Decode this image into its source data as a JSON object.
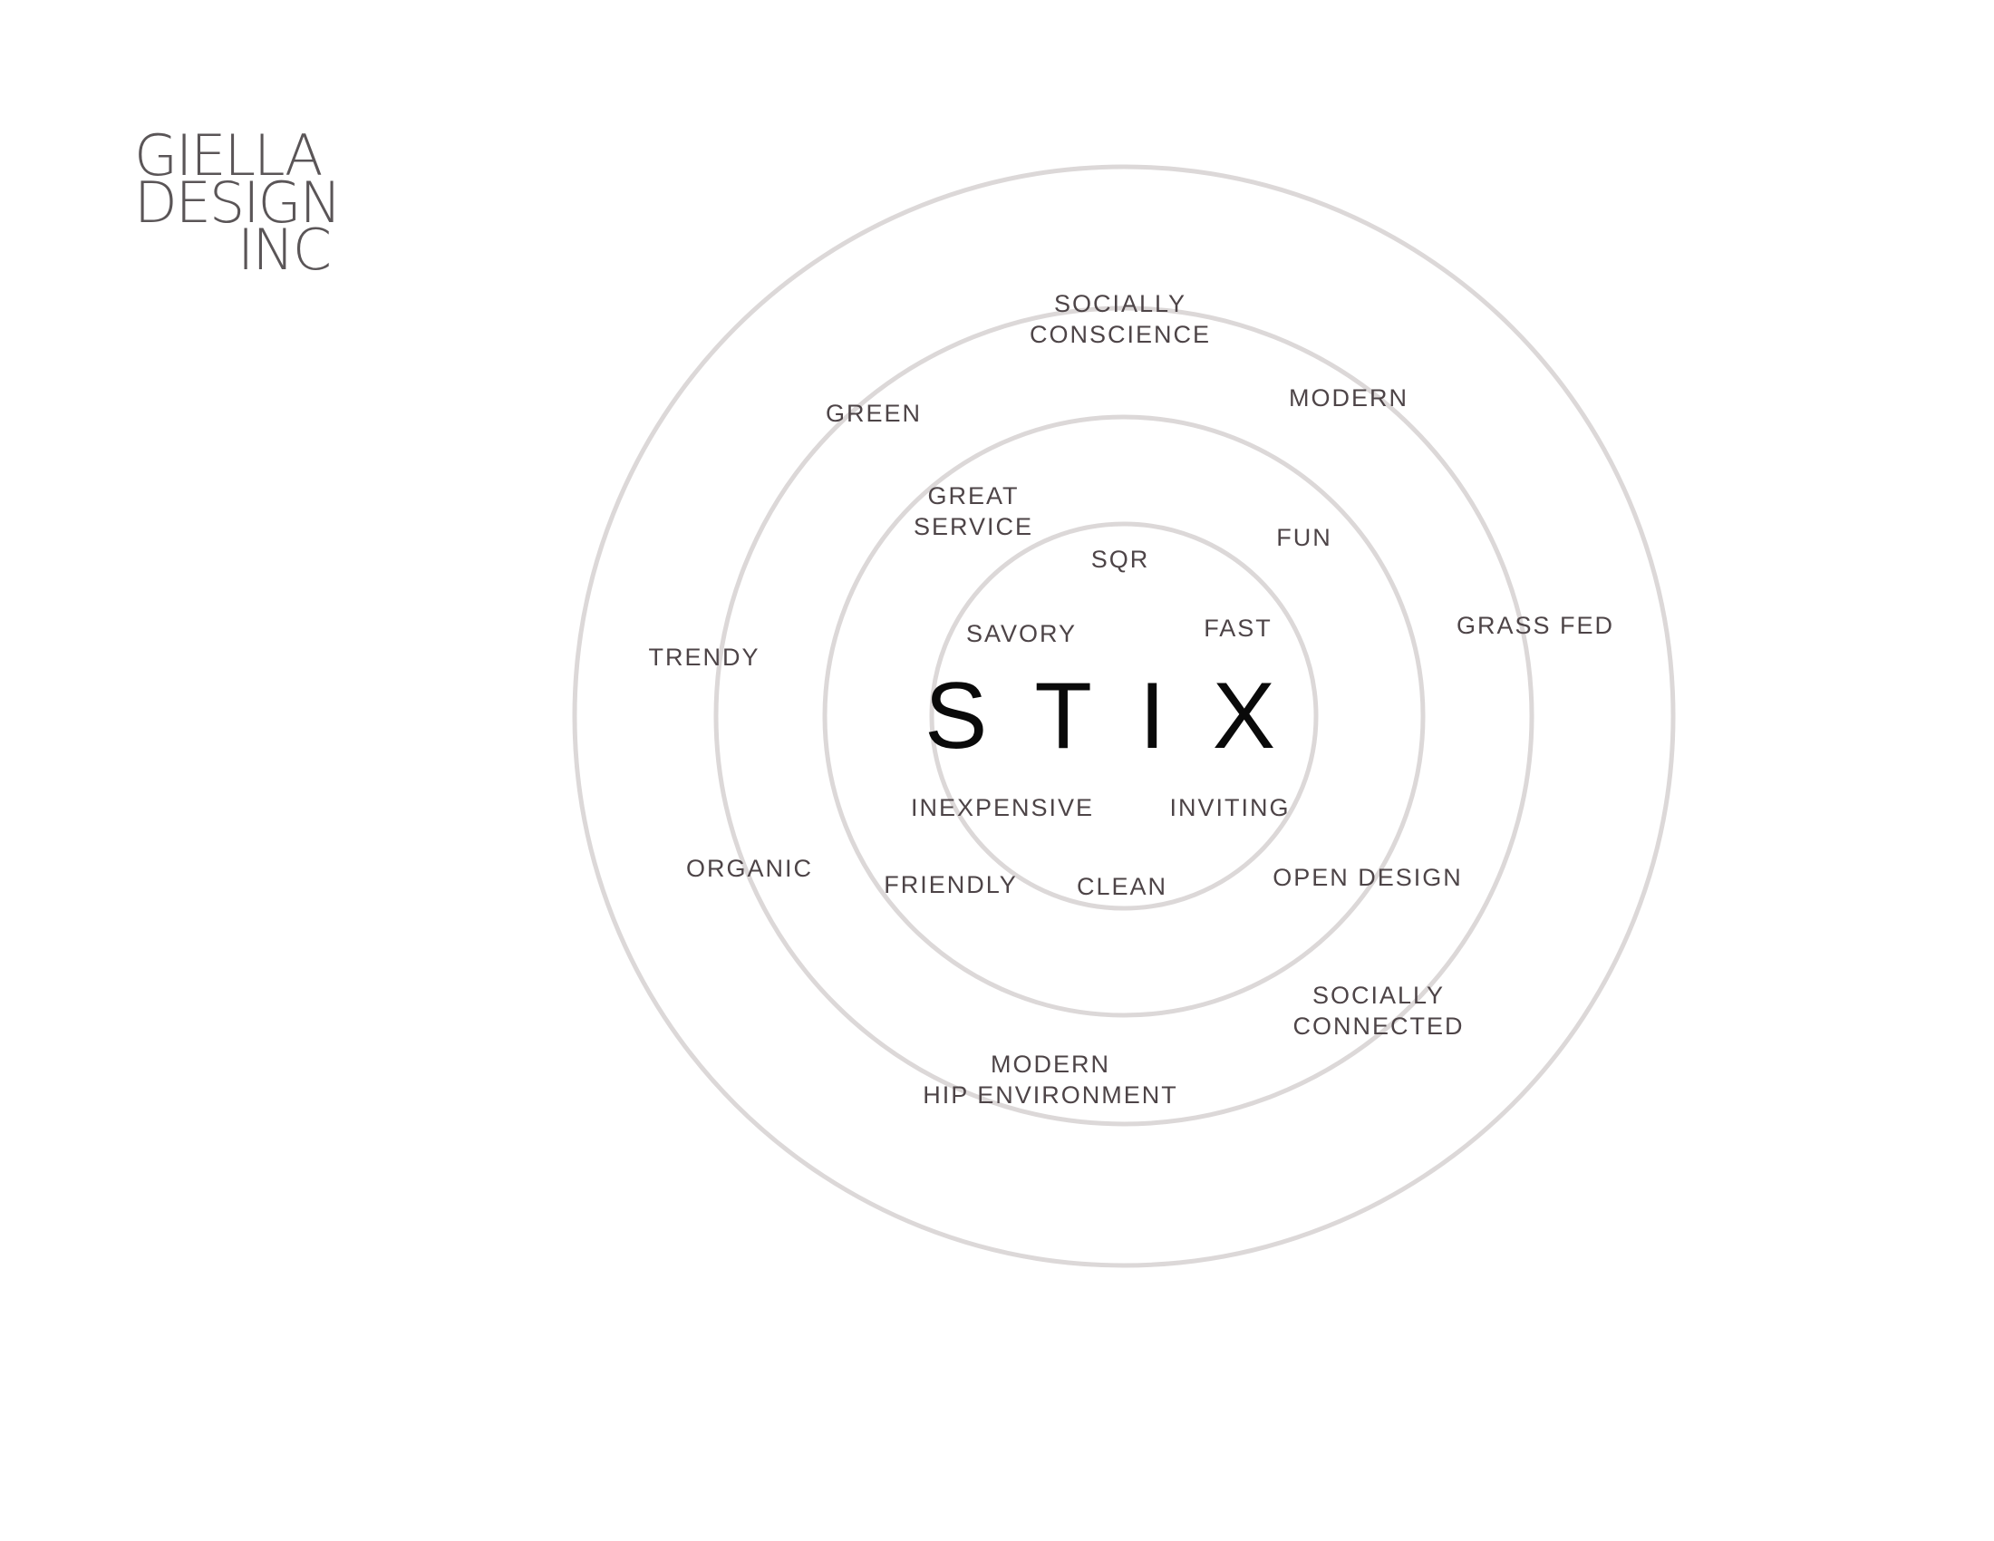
{
  "logo": {
    "line1": "GIELLA",
    "line2": "DESIGN",
    "line3": "INC"
  },
  "brand": "STIX",
  "colors": {
    "ring": "#dcd8d8",
    "label": "#4d4447",
    "brand": "#0a0a0a",
    "logo": "#5a5557"
  },
  "ring1": {
    "sqr": "SQR",
    "savory": "SAVORY",
    "fast": "FAST",
    "inexpensive": "INEXPENSIVE",
    "inviting": "INVITING",
    "clean": "CLEAN"
  },
  "ring2": {
    "great_line1": "GREAT",
    "great_line2": "SERVICE",
    "fun": "FUN",
    "friendly": "FRIENDLY",
    "open_design": "OPEN DESIGN"
  },
  "ring3": {
    "socially_line1": "SOCIALLY",
    "socially_line2": "CONSCIENCE",
    "green": "GREEN",
    "modern": "MODERN",
    "grass_fed": "GRASS FED",
    "connected_line1": "SOCIALLY",
    "connected_line2": "CONNECTED",
    "hip_line1": "MODERN",
    "hip_line2": "HIP ENVIRONMENT"
  },
  "ring4": {
    "trendy": "TRENDY",
    "organic": "ORGANIC"
  }
}
